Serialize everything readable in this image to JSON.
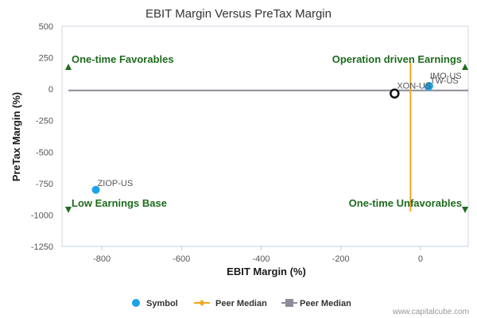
{
  "chart_data": {
    "type": "scatter",
    "title": "EBIT Margin Versus PreTax Margin",
    "xlabel": "EBIT Margin (%)",
    "ylabel": "PreTax Margin (%)",
    "xlim": [
      -900,
      120
    ],
    "ylim": [
      -1250,
      500
    ],
    "xticks": [
      -800,
      -600,
      -400,
      -200,
      0
    ],
    "yticks": [
      500,
      250,
      0,
      -250,
      -500,
      -750,
      -1000,
      -1250
    ],
    "series": [
      {
        "name": "Symbol",
        "color": "#1aa3e8",
        "points": [
          {
            "label": "ZIOP-US",
            "x": -815,
            "y": -800
          },
          {
            "label": "IMO-US",
            "x": 22,
            "y": 25
          },
          {
            "label": "TW-US",
            "x": 20,
            "y": 20
          }
        ]
      },
      {
        "name": "Peer Median",
        "color": "#f5a623",
        "x": -25
      },
      {
        "name": "Peer Median",
        "color": "#8c8c99",
        "y": -10
      }
    ],
    "subject": {
      "label": "XON-US",
      "x": -65,
      "y": -35
    },
    "quadrants": {
      "top_left": "One-time Favorables",
      "top_right": "Operation driven Earnings",
      "bottom_left": "Low Earnings Base",
      "bottom_right": "One-time Unfavorables"
    },
    "quadrant_color": "#1e6b1e",
    "grid": false,
    "legend_position": "bottom"
  },
  "credit": "www.capitalcube.com"
}
